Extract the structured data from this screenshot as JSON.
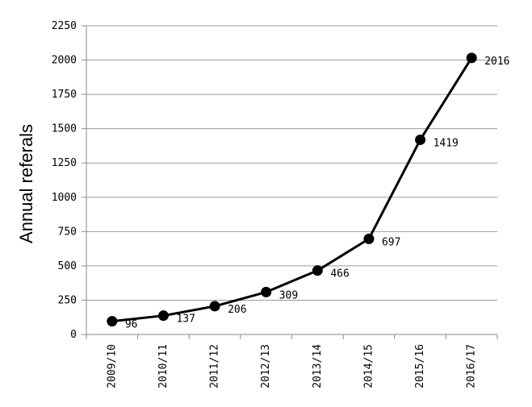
{
  "chart_data": {
    "type": "line",
    "title": "",
    "xlabel": "",
    "ylabel": "Annual referals",
    "categories": [
      "2009/10",
      "2010/11",
      "2011/12",
      "2012/13",
      "2013/14",
      "2014/15",
      "2015/16",
      "2016/17"
    ],
    "series": [
      {
        "values": [
          96,
          137,
          206,
          309,
          466,
          697,
          1419,
          2016
        ]
      }
    ],
    "ylim": [
      0,
      2250
    ],
    "yticks": [
      0,
      250,
      500,
      750,
      1000,
      1250,
      1500,
      1750,
      2000,
      2250
    ],
    "grid": true,
    "legend": "none",
    "data_labels": true,
    "line_color": "#000000",
    "grid_color": "#9a9a9a"
  }
}
